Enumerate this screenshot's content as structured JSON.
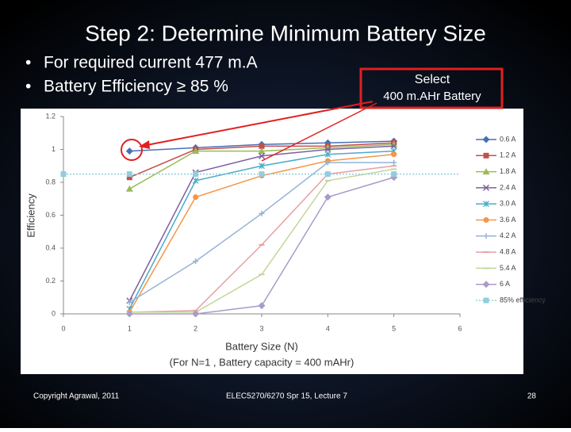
{
  "slide": {
    "title": "Step 2: Determine Minimum Battery Size",
    "bullets": [
      "For required current 477 m.A",
      "Battery Efficiency ≥ 85 %"
    ],
    "callout": [
      "Select",
      "400 m.AHr Battery"
    ],
    "footer": {
      "left": "Copyright Agrawal, 2011",
      "center": "ELEC5270/6270 Spr 15, Lecture 7",
      "right": "28"
    }
  },
  "chart_data": {
    "type": "line",
    "x_label": "Battery Size (N)",
    "note": "(For N=1 , Battery capacity = 400 mAHr)",
    "y_label": "Efficiency",
    "xlim": [
      0,
      6
    ],
    "xticks": [
      0,
      1,
      2,
      3,
      4,
      5,
      6
    ],
    "ylim": [
      0,
      1.2
    ],
    "yticks": [
      0,
      0.2,
      0.4,
      0.6,
      0.8,
      1,
      1.2
    ],
    "legend": "right",
    "x": [
      1,
      2,
      3,
      4,
      5
    ],
    "series": [
      {
        "name": "0.6 A",
        "color": "#4a6fb5",
        "marker": "diamond",
        "values": [
          0.99,
          1.01,
          1.03,
          1.04,
          1.05
        ]
      },
      {
        "name": "1.2 A",
        "color": "#c0504d",
        "marker": "square",
        "values": [
          0.83,
          1.0,
          1.02,
          1.02,
          1.04
        ]
      },
      {
        "name": "1.8 A",
        "color": "#9bbb59",
        "marker": "triangle",
        "values": [
          0.76,
          0.99,
          0.99,
          1.01,
          1.03
        ]
      },
      {
        "name": "2.4 A",
        "color": "#7f5f9f",
        "marker": "x",
        "values": [
          0.08,
          0.86,
          0.96,
          1.0,
          1.02
        ]
      },
      {
        "name": "3.0 A",
        "color": "#4bacc6",
        "marker": "star",
        "values": [
          0.03,
          0.81,
          0.9,
          0.97,
          0.99
        ]
      },
      {
        "name": "3.6 A",
        "color": "#f79646",
        "marker": "circle",
        "values": [
          0.01,
          0.71,
          0.84,
          0.93,
          0.97
        ]
      },
      {
        "name": "4.2 A",
        "color": "#95b3d7",
        "marker": "plus",
        "values": [
          0.07,
          0.32,
          0.61,
          0.92,
          0.92
        ]
      },
      {
        "name": "4.8 A",
        "color": "#e6a0a0",
        "marker": "dash",
        "values": [
          0.01,
          0.02,
          0.42,
          0.85,
          0.9
        ]
      },
      {
        "name": "5.4 A",
        "color": "#c3d69b",
        "marker": "dash",
        "values": [
          0.01,
          0.01,
          0.24,
          0.81,
          0.88
        ]
      },
      {
        "name": "6 A",
        "color": "#a99bcc",
        "marker": "diamond",
        "values": [
          0.0,
          0.0,
          0.05,
          0.71,
          0.83
        ]
      },
      {
        "name": "85% efficiency",
        "color": "#93cddd",
        "marker": "square",
        "dotted": true,
        "x": [
          0,
          1,
          2,
          3,
          4,
          5
        ],
        "values": [
          0.85,
          0.85,
          0.85,
          0.85,
          0.85,
          0.85
        ]
      }
    ]
  }
}
